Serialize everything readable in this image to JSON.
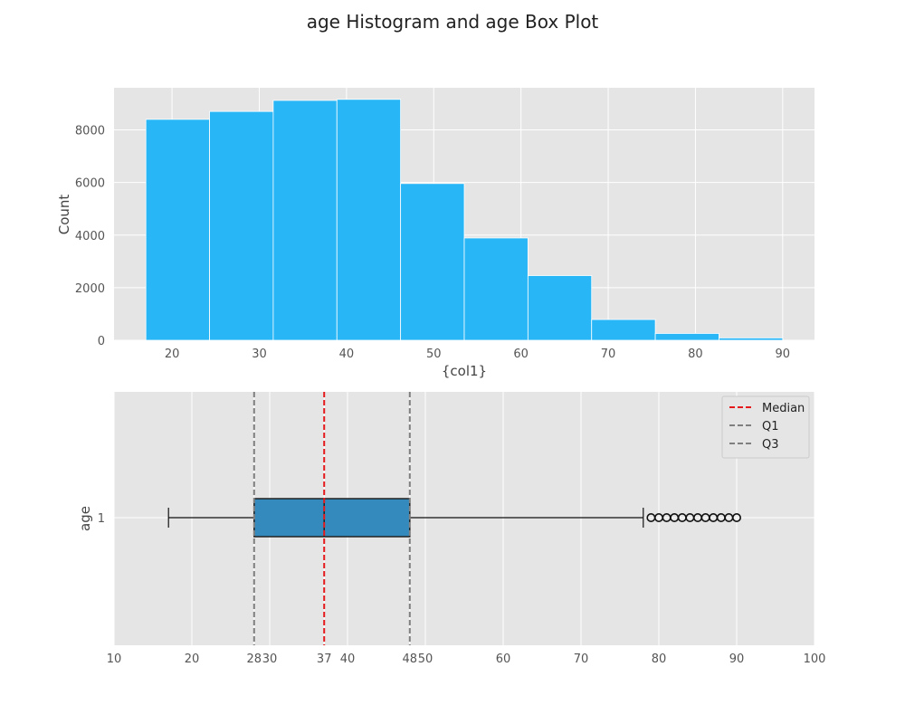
{
  "figure": {
    "title": "age Histogram and age Box Plot"
  },
  "chart_data": [
    {
      "type": "bar",
      "subtype": "histogram",
      "bins": [
        {
          "start": 17.0,
          "end": 24.3,
          "count": 8400
        },
        {
          "start": 24.3,
          "end": 31.6,
          "count": 8700
        },
        {
          "start": 31.6,
          "end": 38.9,
          "count": 9120
        },
        {
          "start": 38.9,
          "end": 46.2,
          "count": 9160
        },
        {
          "start": 46.2,
          "end": 53.5,
          "count": 5960
        },
        {
          "start": 53.5,
          "end": 60.8,
          "count": 3890
        },
        {
          "start": 60.8,
          "end": 68.1,
          "count": 2460
        },
        {
          "start": 68.1,
          "end": 75.4,
          "count": 790
        },
        {
          "start": 75.4,
          "end": 82.7,
          "count": 260
        },
        {
          "start": 82.7,
          "end": 90.0,
          "count": 90
        }
      ],
      "xlabel": "{col1}",
      "ylabel": "Count",
      "xlim": [
        13.35,
        93.65
      ],
      "ylim": [
        0,
        9600
      ],
      "xticks": [
        20,
        30,
        40,
        50,
        60,
        70,
        80,
        90
      ],
      "yticks": [
        0,
        2000,
        4000,
        6000,
        8000
      ],
      "grid": true,
      "bar_color": "#29b6f6"
    },
    {
      "type": "boxplot",
      "orientation": "horizontal",
      "category_label": "1",
      "ylabel": "age",
      "stats": {
        "whisker_low": 17,
        "q1": 28,
        "median": 37,
        "q3": 48,
        "whisker_high": 78
      },
      "outliers": [
        79,
        80,
        81,
        82,
        83,
        84,
        85,
        86,
        87,
        88,
        89,
        90
      ],
      "reference_lines": [
        {
          "name": "Median",
          "value": 37,
          "color": "#e41a1c"
        },
        {
          "name": "Q1",
          "value": 28,
          "color": "#7f7f7f"
        },
        {
          "name": "Q3",
          "value": 48,
          "color": "#7f7f7f"
        }
      ],
      "xlim": [
        10,
        100
      ],
      "xticks": [
        10,
        20,
        28,
        30,
        37,
        40,
        48,
        50,
        60,
        70,
        80,
        90,
        100
      ],
      "legend_position": "top-right",
      "grid": true,
      "box_color": "#348abd"
    }
  ]
}
